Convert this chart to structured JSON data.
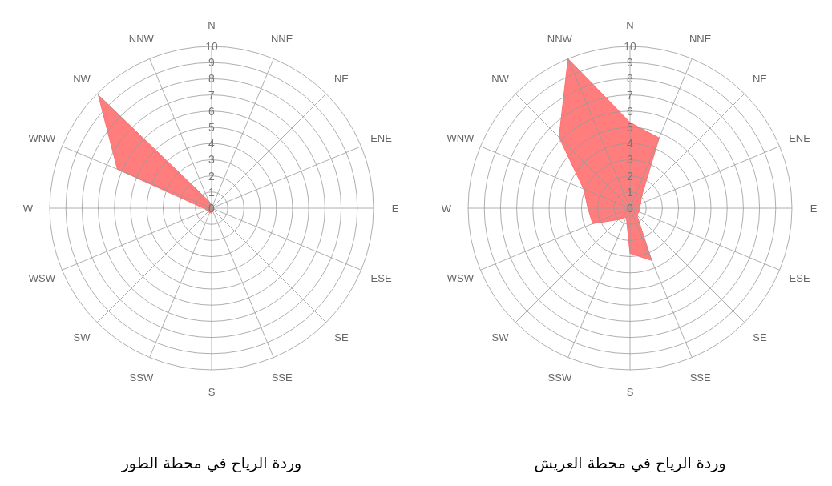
{
  "chart_data": [
    {
      "type": "radar",
      "title": "وردة الرياح في محطة الطور",
      "categories": [
        "N",
        "NNE",
        "NE",
        "ENE",
        "E",
        "ESE",
        "SE",
        "SSE",
        "S",
        "SSW",
        "SW",
        "WSW",
        "W",
        "WNW",
        "NW",
        "NNW"
      ],
      "series": [
        {
          "color": "#ff6f6f",
          "values": [
            0.2,
            0.1,
            0.1,
            0.1,
            0.1,
            0.1,
            0.1,
            0.2,
            0.3,
            0.3,
            0.3,
            0.3,
            0.5,
            6.3,
            9.9,
            0.5
          ]
        }
      ],
      "ylim": [
        0,
        10
      ],
      "yticks": [
        0,
        1,
        2,
        3,
        4,
        5,
        6,
        7,
        8,
        9,
        10
      ],
      "grid": true
    },
    {
      "type": "radar",
      "title": "وردة الرياح في محطة العريش",
      "categories": [
        "N",
        "NNE",
        "NE",
        "ENE",
        "E",
        "ESE",
        "SE",
        "SSE",
        "S",
        "SSW",
        "SW",
        "WSW",
        "W",
        "WNW",
        "NW",
        "NNW"
      ],
      "series": [
        {
          "color": "#ff6f6f",
          "values": [
            5.3,
            4.7,
            1.0,
            0.7,
            0.6,
            0.6,
            0.6,
            3.5,
            2.8,
            0.6,
            1.0,
            2.5,
            2.6,
            3.1,
            6.2,
            10.0
          ]
        }
      ],
      "ylim": [
        0,
        10
      ],
      "yticks": [
        0,
        1,
        2,
        3,
        4,
        5,
        6,
        7,
        8,
        9,
        10
      ],
      "grid": true
    }
  ]
}
